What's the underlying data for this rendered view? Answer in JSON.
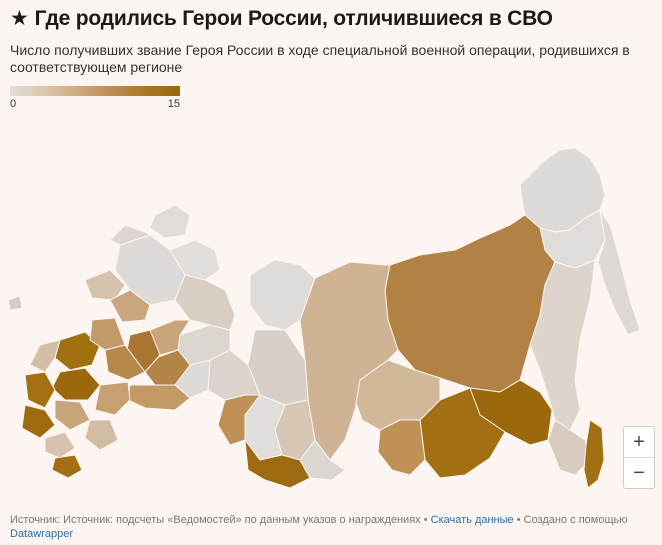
{
  "header": {
    "star": "★",
    "title": "Где родились Герои России, отличившиеся в СВО",
    "subtitle": "Число получивших звание Героя России в ходе специальной военной операции, родившихся в соответствующем регионе"
  },
  "legend": {
    "min_label": "0",
    "max_label": "15",
    "colors": [
      "#e2dedd",
      "#d9c0a3",
      "#c7996a",
      "#b07b2f",
      "#9a6609"
    ]
  },
  "map": {
    "land_color": "#ddd7d4",
    "border_color": "#fdf5f1"
  },
  "zoom": {
    "in_label": "+",
    "out_label": "−"
  },
  "footer": {
    "source": "Источник: Источник: подсчеты «Ведомостей» по данным указов о награждениях",
    "sep1": " • ",
    "download": "Скачать данные",
    "sep2": " • ",
    "created_with": "Создано с помощью",
    "datawrapper": "Datawrapper"
  }
}
